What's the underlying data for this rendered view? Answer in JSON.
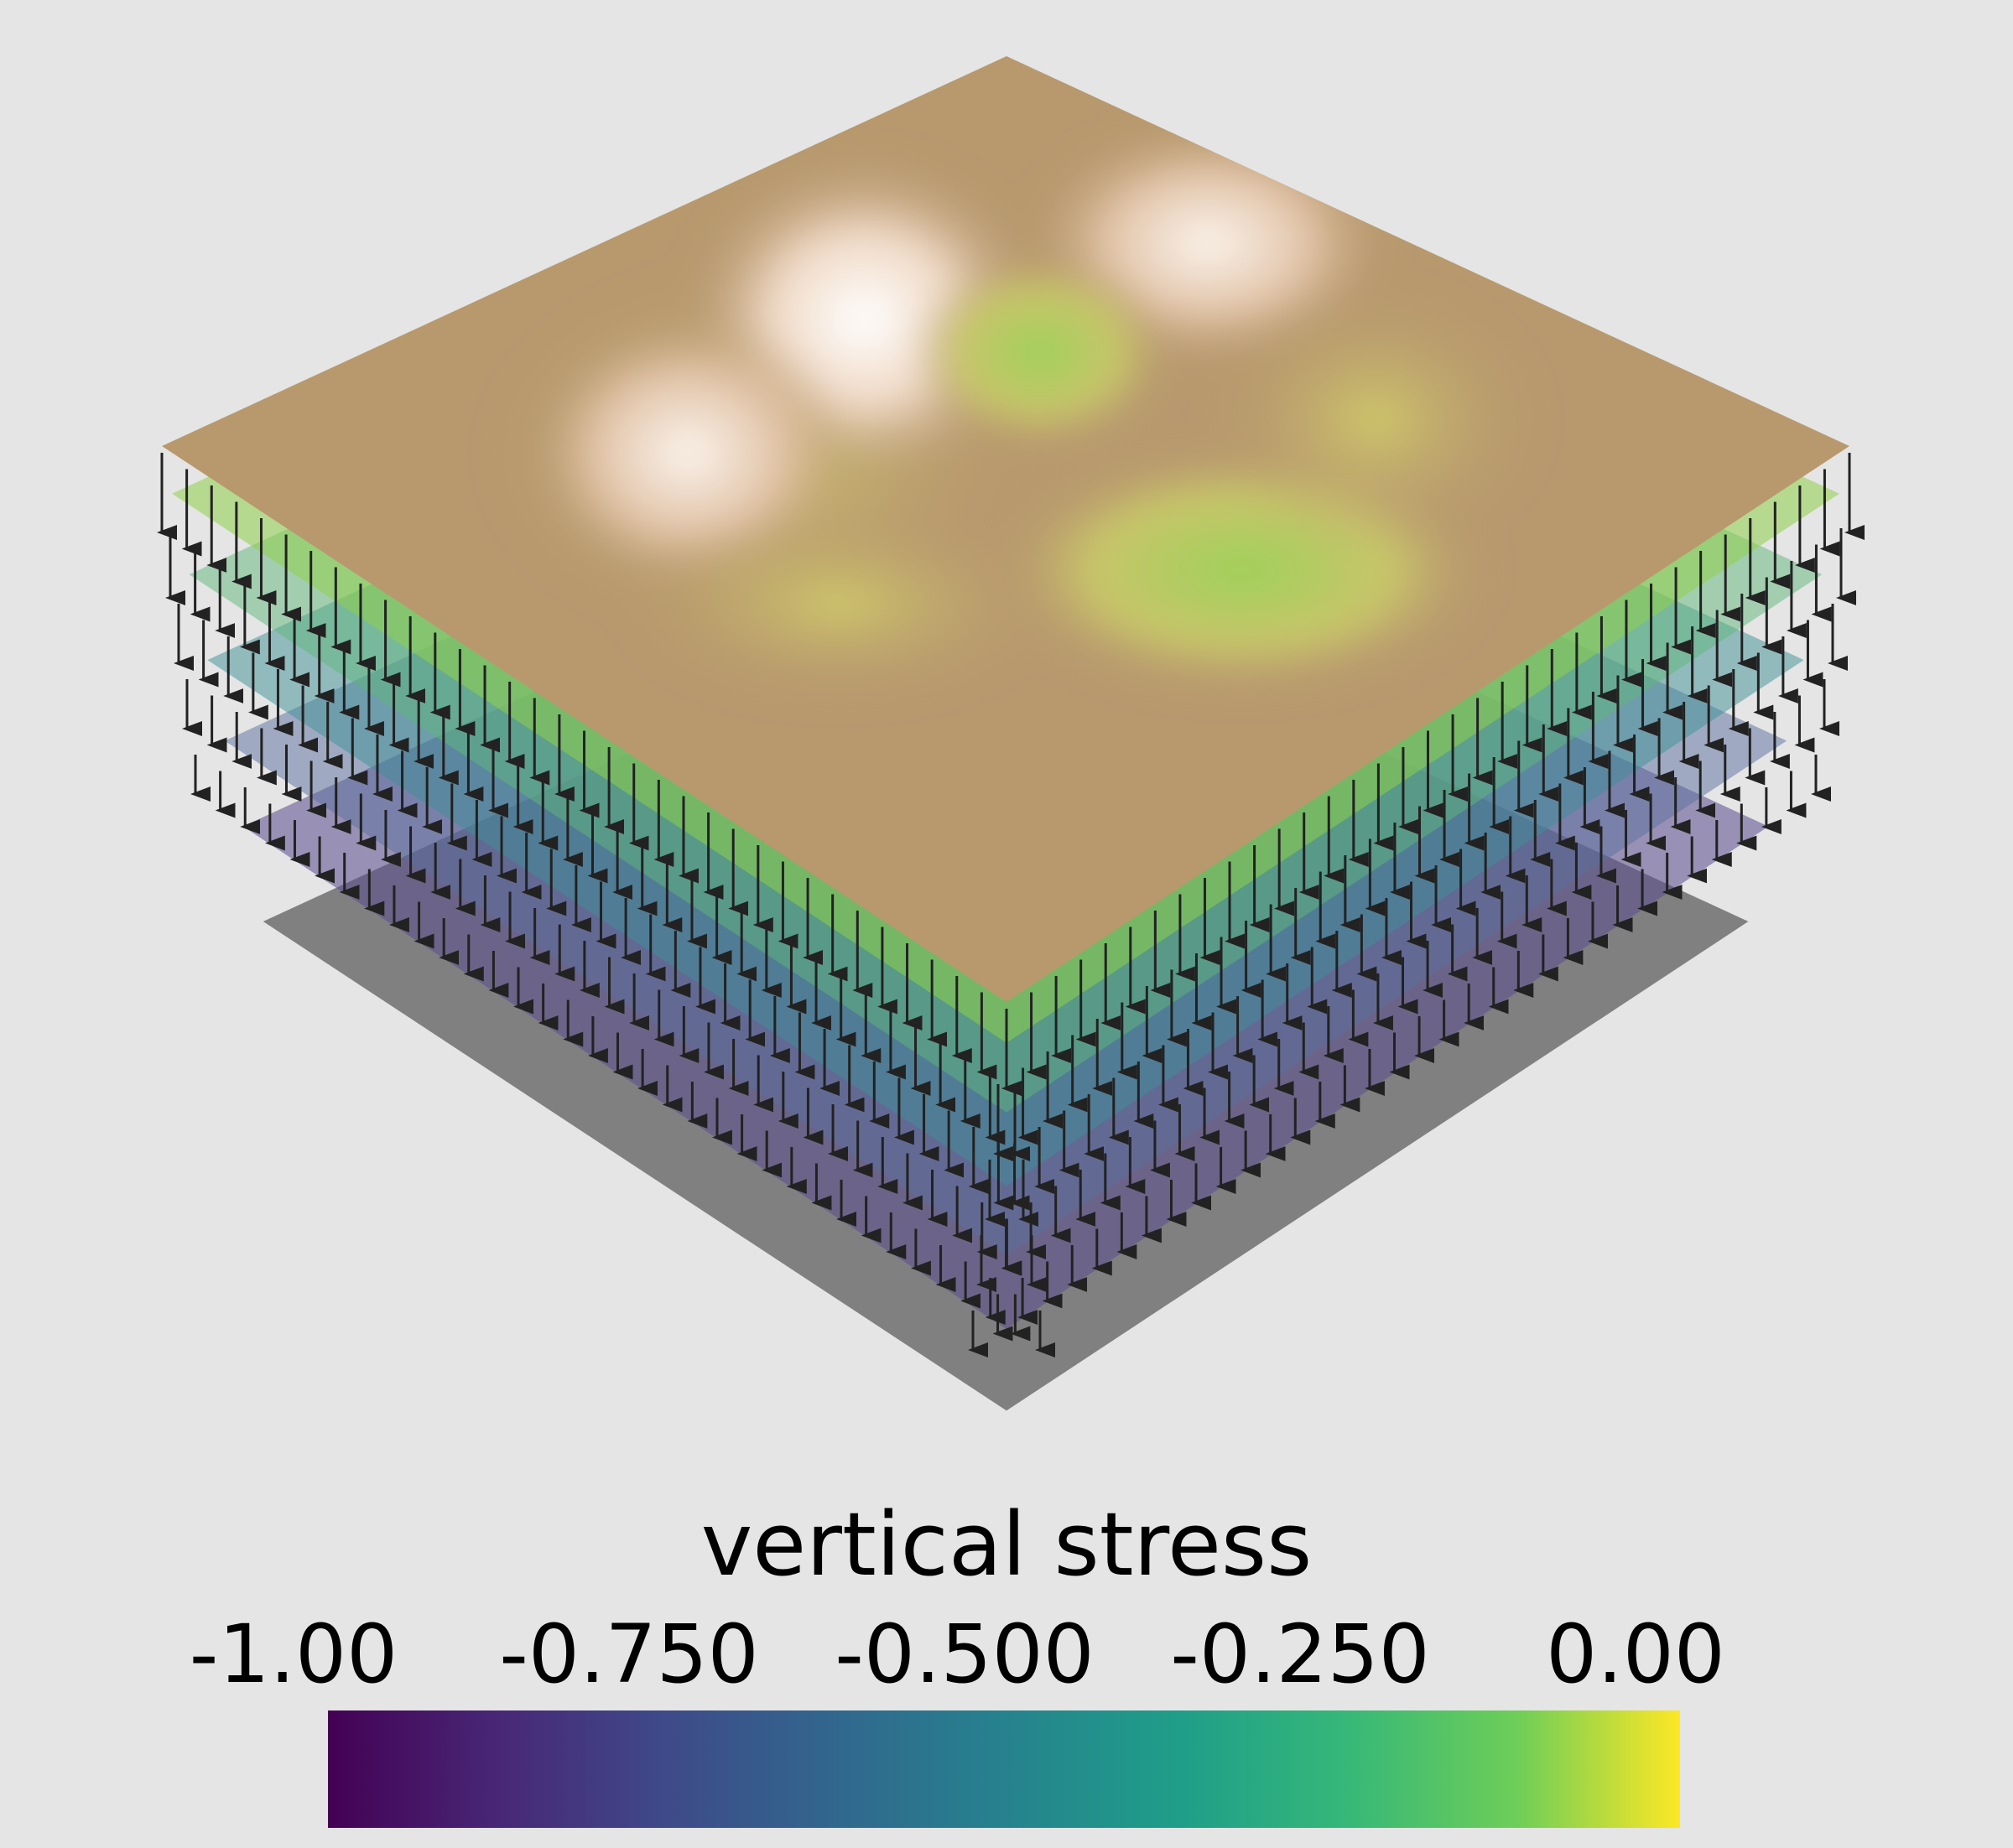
{
  "chart_data": {
    "type": "3d-surface",
    "colorbar": {
      "title": "vertical stress",
      "ticks": [
        "-1.00",
        "-0.750",
        "-0.500",
        "-0.250",
        "0.00"
      ],
      "range": [
        -1.0,
        0.0
      ],
      "colormap": "viridis",
      "orientation": "horizontal",
      "placement": "bottom"
    },
    "layers": [
      {
        "depth_fraction": 0.1,
        "stress": -0.1,
        "color": "#8fcf4a",
        "opacity": 0.55
      },
      {
        "depth_fraction": 0.27,
        "stress": -0.27,
        "color": "#5fb87a",
        "opacity": 0.5
      },
      {
        "depth_fraction": 0.45,
        "stress": -0.45,
        "color": "#3e8f96",
        "opacity": 0.5
      },
      {
        "depth_fraction": 0.62,
        "stress": -0.62,
        "color": "#5a6fa0",
        "opacity": 0.5
      },
      {
        "depth_fraction": 0.8,
        "stress": -0.8,
        "color": "#5a4d8e",
        "opacity": 0.55
      },
      {
        "depth_fraction": 1.0,
        "stress": -1.0,
        "color": "#6e6e6e",
        "opacity": 0.85
      }
    ],
    "topography": {
      "surface_color": "#b8996e",
      "peak_color": "#ffffff",
      "valley_color": "#9ed15a"
    },
    "vectors": {
      "direction": "down",
      "color": "#222222"
    }
  },
  "colors": {
    "background": "#e5e5e5"
  }
}
